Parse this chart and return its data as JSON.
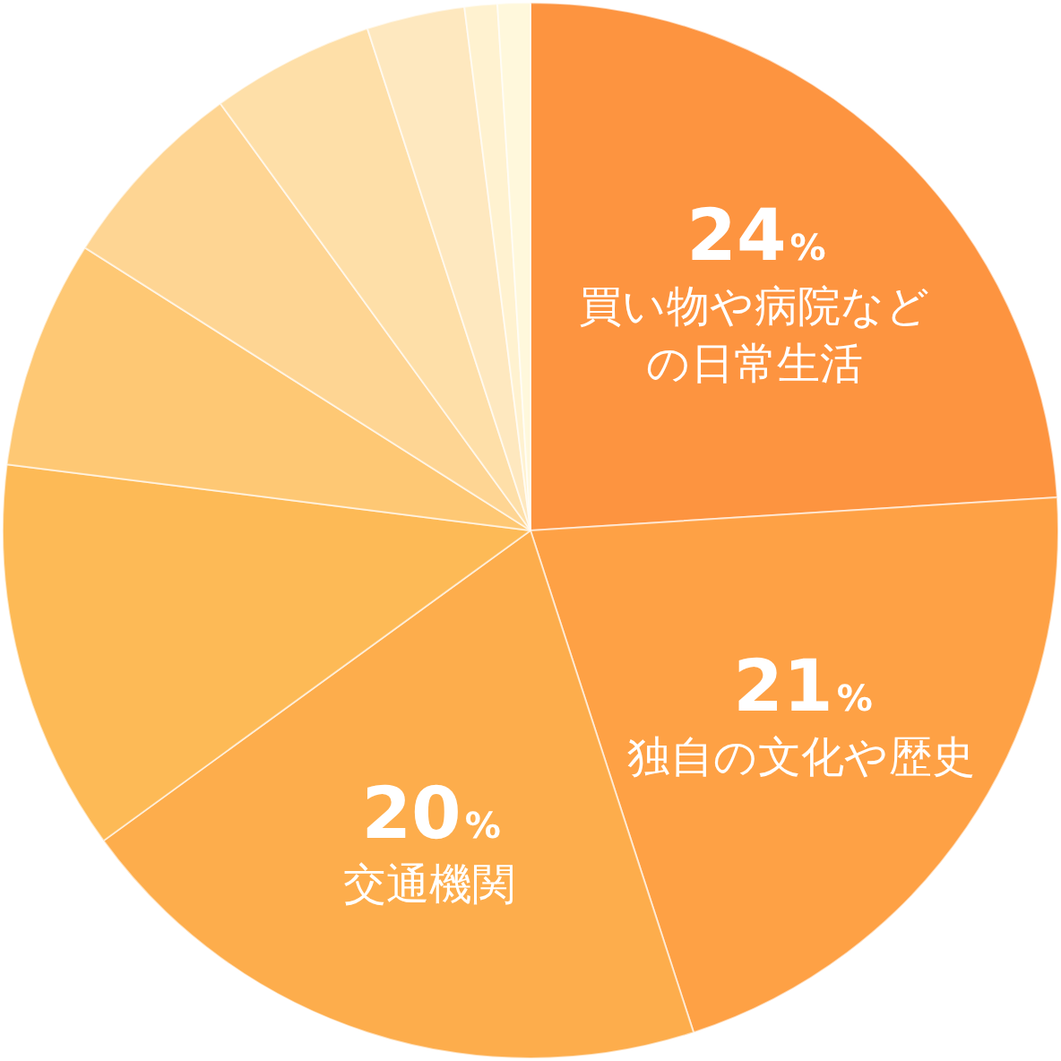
{
  "chart_data": {
    "type": "pie",
    "categories": [
      "買い物や病院などの日常生活",
      "独自の文化や歴史",
      "交通機関",
      null,
      null,
      null,
      null,
      null,
      null,
      null
    ],
    "values": [
      24,
      21,
      20,
      12,
      7,
      6,
      5,
      3,
      1,
      1
    ],
    "colors": [
      "#fd9440",
      "#fea145",
      "#fdad4c",
      "#fdba56",
      "#fec874",
      "#fed593",
      "#fedfa8",
      "#fee8bf",
      "#fff2d0",
      "#fff8dc"
    ],
    "value_labels": [
      "24%",
      "21%",
      "20%",
      null,
      null,
      null,
      null,
      null,
      null,
      null
    ],
    "legend": false
  }
}
